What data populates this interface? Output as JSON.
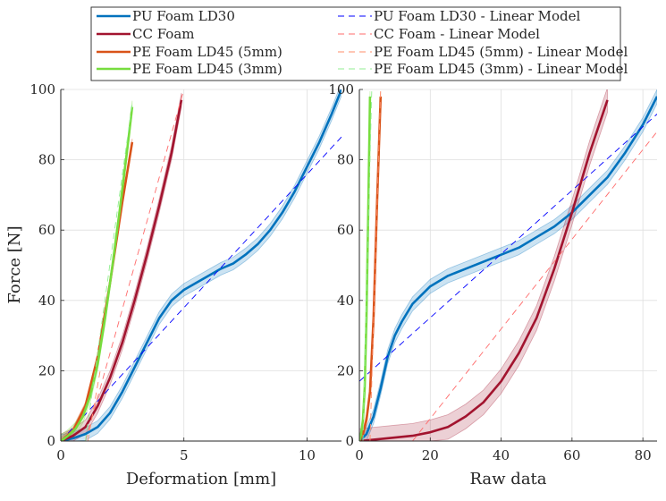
{
  "chart_data": [
    {
      "type": "line",
      "panel": "left",
      "xlabel": "Deformation [mm]",
      "ylabel": "Force [N]",
      "xlim": [
        0,
        11.4
      ],
      "ylim": [
        0,
        100
      ],
      "xticks": [
        "0",
        "5",
        "10"
      ],
      "xtick_values": [
        0,
        5,
        10
      ],
      "yticks": [
        "0",
        "20",
        "40",
        "60",
        "80",
        "100"
      ],
      "ytick_values": [
        0,
        20,
        40,
        60,
        80,
        100
      ],
      "grid": true,
      "series": [
        {
          "name": "PU Foam LD30",
          "color": "#0072bd",
          "style": "solid",
          "band": 1.8,
          "x": [
            0,
            0.5,
            1.0,
            1.5,
            2.0,
            2.5,
            3.0,
            3.5,
            4.0,
            4.5,
            5.0,
            5.5,
            6.0,
            6.5,
            7.0,
            7.5,
            8.0,
            8.5,
            9.0,
            9.5,
            10.0,
            10.5,
            11.0,
            11.4
          ],
          "y": [
            0,
            0.8,
            2,
            4,
            8,
            14,
            21,
            28,
            35,
            40,
            43,
            45,
            47,
            49,
            50.5,
            53,
            56,
            60,
            65,
            71,
            78,
            85,
            93,
            100
          ]
        },
        {
          "name": "PU Foam LD30 - Linear Model",
          "color": "#0000ff",
          "style": "dashed",
          "x": [
            0,
            11.4
          ],
          "y": [
            0,
            86.5
          ]
        },
        {
          "name": "CC Foam",
          "color": "#a2142f",
          "style": "solid",
          "band": 2,
          "x": [
            0,
            0.5,
            1.0,
            1.5,
            2.0,
            2.5,
            3.0,
            3.5,
            4.0,
            4.5,
            4.9
          ],
          "y": [
            0,
            1.5,
            4,
            10,
            18,
            28,
            40,
            53,
            67,
            82,
            97
          ]
        },
        {
          "name": "CC Foam - Linear Model",
          "color": "#ff6b6b",
          "style": "dashed",
          "x": [
            1.0,
            5.0
          ],
          "y": [
            0,
            100
          ]
        },
        {
          "name": "PE Foam LD45 (5mm)",
          "color": "#d95319",
          "style": "solid",
          "band": 1,
          "x": [
            0,
            0.5,
            1.0,
            1.5,
            2.0,
            2.5,
            2.9
          ],
          "y": [
            0,
            3,
            10,
            24,
            45,
            68,
            85
          ]
        },
        {
          "name": "PE Foam LD45 (5mm) - Linear Model",
          "color": "#ff8c69",
          "style": "dashed",
          "x": [
            1.1,
            1.6
          ],
          "y": [
            0,
            20
          ]
        },
        {
          "name": "PE Foam LD45 (3mm)",
          "color": "#77dd3e",
          "style": "solid",
          "band": 1.8,
          "x": [
            0,
            0.3,
            0.6,
            0.9,
            1.2,
            1.5,
            1.8,
            2.1,
            2.4,
            2.7,
            2.9
          ],
          "y": [
            0,
            1.5,
            3.5,
            7,
            13,
            22,
            35,
            50,
            66,
            83,
            95
          ]
        },
        {
          "name": "PE Foam LD45 (3mm) - Linear Model",
          "color": "#90ee90",
          "style": "dashed",
          "x": [
            1.0,
            2.9
          ],
          "y": [
            0,
            96
          ]
        }
      ]
    },
    {
      "type": "line",
      "panel": "right",
      "xlabel": "Raw data",
      "ylabel": "",
      "xlim": [
        0,
        84
      ],
      "ylim": [
        0,
        100
      ],
      "xticks": [
        "0",
        "20",
        "40",
        "60",
        "80"
      ],
      "xtick_values": [
        0,
        20,
        40,
        60,
        80
      ],
      "yticks": [
        "0",
        "20",
        "40",
        "60",
        "80",
        "100"
      ],
      "ytick_values": [
        0,
        20,
        40,
        60,
        80,
        100
      ],
      "grid": true,
      "series": [
        {
          "name": "PU Foam LD30",
          "color": "#0072bd",
          "style": "solid",
          "band": 2,
          "x": [
            0,
            2,
            4,
            6,
            8,
            10,
            12,
            15,
            20,
            25,
            30,
            35,
            40,
            45,
            50,
            55,
            60,
            65,
            70,
            75,
            80,
            84
          ],
          "y": [
            0,
            2,
            7,
            15,
            24,
            30,
            34,
            39,
            44,
            47,
            49,
            51,
            53,
            55,
            58,
            61,
            65,
            70,
            75,
            82,
            90,
            98
          ]
        },
        {
          "name": "PU Foam LD30 - Linear Model",
          "color": "#0000ff",
          "style": "dashed",
          "x": [
            0,
            84
          ],
          "y": [
            17,
            93
          ]
        },
        {
          "name": "CC Foam",
          "color": "#a2142f",
          "style": "solid",
          "band": 3.5,
          "x": [
            0,
            5,
            10,
            15,
            20,
            25,
            30,
            35,
            40,
            45,
            50,
            55,
            60,
            65,
            70
          ],
          "y": [
            0,
            0.5,
            1,
            1.5,
            2.5,
            4,
            7,
            11,
            17,
            25,
            35,
            49,
            65,
            82,
            97
          ]
        },
        {
          "name": "CC Foam - Linear Model",
          "color": "#ff6b6b",
          "style": "dashed",
          "x": [
            15,
            84
          ],
          "y": [
            0,
            88
          ]
        },
        {
          "name": "PE Foam LD45 (5mm)",
          "color": "#d95319",
          "style": "solid",
          "band": 1.5,
          "x": [
            0,
            1,
            2,
            3,
            4,
            5,
            6
          ],
          "y": [
            0,
            2,
            6,
            14,
            35,
            68,
            98
          ]
        },
        {
          "name": "PE Foam LD45 (5mm) - Linear Model",
          "color": "#ff8c69",
          "style": "dashed",
          "x": [
            3,
            6
          ],
          "y": [
            0,
            100
          ]
        },
        {
          "name": "PE Foam LD45 (3mm)",
          "color": "#77dd3e",
          "style": "solid",
          "band": 1.5,
          "x": [
            0,
            0.5,
            1,
            1.5,
            2,
            2.5,
            3
          ],
          "y": [
            0,
            2,
            6,
            15,
            35,
            65,
            98
          ]
        },
        {
          "name": "PE Foam LD45 (3mm) - Linear Model",
          "color": "#90ee90",
          "style": "dashed",
          "x": [
            1,
            3.5
          ],
          "y": [
            0,
            100
          ]
        }
      ]
    }
  ],
  "legend": {
    "placement": "top-center",
    "columns": 2,
    "order": [
      0,
      2,
      4,
      6,
      1,
      3,
      5,
      7
    ]
  }
}
